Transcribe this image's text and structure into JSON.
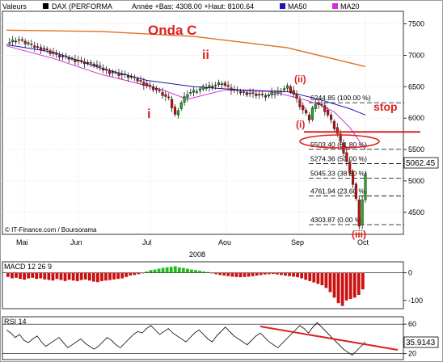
{
  "header": {
    "valeurs_label": "Valeurs",
    "instrument": "DAX (PERFORMA",
    "range_text": "Année +Bas: 4308.00 +Haut: 8100.64",
    "ma50_label": "MA50",
    "ma20_label": "MA20",
    "ma50_color": "#1a1aa8",
    "ma20_color": "#d030d0"
  },
  "credit": "© IT-Finance.com / Boursorama",
  "x_year_label": "2008",
  "months": [
    "Mai",
    "Jun",
    "Jul",
    "Aou",
    "Sep",
    "Oct"
  ],
  "annotations": {
    "onda": "Onda C",
    "wave_i": "i",
    "wave_ii": "ii",
    "wave_ii_small": "(ii)",
    "wave_i_small": "(i)",
    "wave_iii": "(iii)",
    "stop": "stop",
    "accent_color": "#dd2222",
    "trend_color": "#e07020"
  },
  "fib_levels": [
    {
      "value": 6244.85,
      "text": "6244.85 (100.00 %)"
    },
    {
      "value": 5503.4,
      "text": "5503.40 (61.80 %)"
    },
    {
      "value": 5274.36,
      "text": "5274.36 (50.00 %)"
    },
    {
      "value": 5045.33,
      "text": "5045.33 (38.20 %)"
    },
    {
      "value": 4761.94,
      "text": "4761.94 (23.60 %)"
    },
    {
      "value": 4303.87,
      "text": "4303.87 (0.00 %)"
    }
  ],
  "current_price": "5062.45",
  "current_price_value": 5062.45,
  "stop_level": 5780,
  "chart_data": [
    {
      "type": "candlestick",
      "title": "DAX (PERFORMA",
      "x_axis": "months May–Oct 2008",
      "y_ticks": [
        4500,
        5000,
        5500,
        6000,
        6500,
        7000,
        7500
      ],
      "ylim": [
        4150,
        7700
      ],
      "price_path": [
        [
          0,
          7200
        ],
        [
          4,
          7250
        ],
        [
          8,
          7150
        ],
        [
          12,
          7100
        ],
        [
          16,
          7000
        ],
        [
          20,
          6950
        ],
        [
          24,
          6900
        ],
        [
          28,
          6850
        ],
        [
          32,
          6750
        ],
        [
          36,
          6700
        ],
        [
          40,
          6650
        ],
        [
          44,
          6550
        ],
        [
          48,
          6450
        ],
        [
          52,
          6300
        ],
        [
          54,
          6050
        ],
        [
          56,
          6250
        ],
        [
          58,
          6400
        ],
        [
          60,
          6420
        ],
        [
          63,
          6480
        ],
        [
          66,
          6520
        ],
        [
          69,
          6560
        ],
        [
          71,
          6480
        ],
        [
          74,
          6420
        ],
        [
          77,
          6400
        ],
        [
          80,
          6380
        ],
        [
          83,
          6350
        ],
        [
          86,
          6400
        ],
        [
          88,
          6450
        ],
        [
          90,
          6500
        ],
        [
          92,
          6380
        ],
        [
          94,
          6200
        ],
        [
          96,
          6050
        ],
        [
          97,
          5980
        ],
        [
          98,
          6150
        ],
        [
          99,
          6244
        ],
        [
          101,
          6200
        ],
        [
          103,
          6050
        ],
        [
          104,
          5950
        ],
        [
          106,
          5750
        ],
        [
          107,
          5600
        ],
        [
          108,
          5450
        ],
        [
          109,
          5300
        ],
        [
          110,
          5150
        ],
        [
          111,
          4950
        ],
        [
          112,
          4700
        ],
        [
          113,
          4303
        ],
        [
          114,
          4700
        ],
        [
          115,
          5062
        ]
      ],
      "ma50_path": [
        [
          0,
          7170
        ],
        [
          15,
          7050
        ],
        [
          30,
          6800
        ],
        [
          45,
          6600
        ],
        [
          60,
          6500
        ],
        [
          75,
          6450
        ],
        [
          90,
          6420
        ],
        [
          100,
          6300
        ],
        [
          110,
          6150
        ],
        [
          115,
          6050
        ]
      ],
      "ma20_path": [
        [
          0,
          7150
        ],
        [
          15,
          6950
        ],
        [
          30,
          6700
        ],
        [
          40,
          6580
        ],
        [
          50,
          6450
        ],
        [
          58,
          6300
        ],
        [
          70,
          6450
        ],
        [
          85,
          6420
        ],
        [
          95,
          6300
        ],
        [
          100,
          6220
        ],
        [
          105,
          6100
        ],
        [
          110,
          5850
        ],
        [
          115,
          5500
        ]
      ],
      "trend_path": [
        [
          0,
          7400
        ],
        [
          30,
          7380
        ],
        [
          60,
          7300
        ],
        [
          90,
          7120
        ],
        [
          115,
          6820
        ]
      ]
    },
    {
      "type": "bar",
      "title": "MACD 12 26 9",
      "y_ticks": [
        0,
        -100
      ],
      "ylim": [
        -130,
        40
      ],
      "values": [
        -15,
        -20,
        -18,
        -22,
        -25,
        -20,
        -18,
        -22,
        -20,
        -24,
        -26,
        -28,
        -22,
        -26,
        -30,
        -25,
        -28,
        -30,
        -26,
        -24,
        -28,
        -32,
        -34,
        -30,
        -28,
        -26,
        -24,
        -22,
        -20,
        -15,
        -10,
        -8,
        -5,
        -2,
        5,
        10,
        12,
        15,
        18,
        20,
        22,
        24,
        20,
        18,
        15,
        12,
        10,
        8,
        5,
        3,
        -2,
        -5,
        -8,
        -10,
        -12,
        -14,
        -15,
        -16,
        -15,
        -14,
        -12,
        -10,
        -8,
        -6,
        -5,
        -4,
        -6,
        -8,
        -10,
        -12,
        -14,
        -16,
        -20,
        -25,
        -30,
        -35,
        -40,
        -45,
        -55,
        -70,
        -90,
        -110,
        -120,
        -100,
        -95,
        -90,
        -80,
        -60
      ]
    },
    {
      "type": "line",
      "title": "RSI 14",
      "y_ticks": [
        60,
        20
      ],
      "ylim": [
        12,
        70
      ],
      "current_value": "35.9143",
      "values": [
        52,
        48,
        42,
        46,
        38,
        35,
        40,
        44,
        36,
        30,
        34,
        38,
        42,
        35,
        28,
        32,
        36,
        40,
        34,
        30,
        26,
        30,
        36,
        42,
        38,
        32,
        28,
        34,
        40,
        46,
        50,
        48,
        54,
        58,
        52,
        46,
        50,
        54,
        48,
        44,
        40,
        36,
        42,
        48,
        52,
        46,
        40,
        36,
        44,
        50,
        56,
        50,
        44,
        40,
        36,
        32,
        38,
        44,
        48,
        42,
        36,
        32,
        28,
        34,
        40,
        46,
        52,
        58,
        54,
        48,
        56,
        62,
        56,
        50,
        44,
        38,
        32,
        26,
        22,
        18,
        24,
        30,
        36
      ]
    }
  ]
}
